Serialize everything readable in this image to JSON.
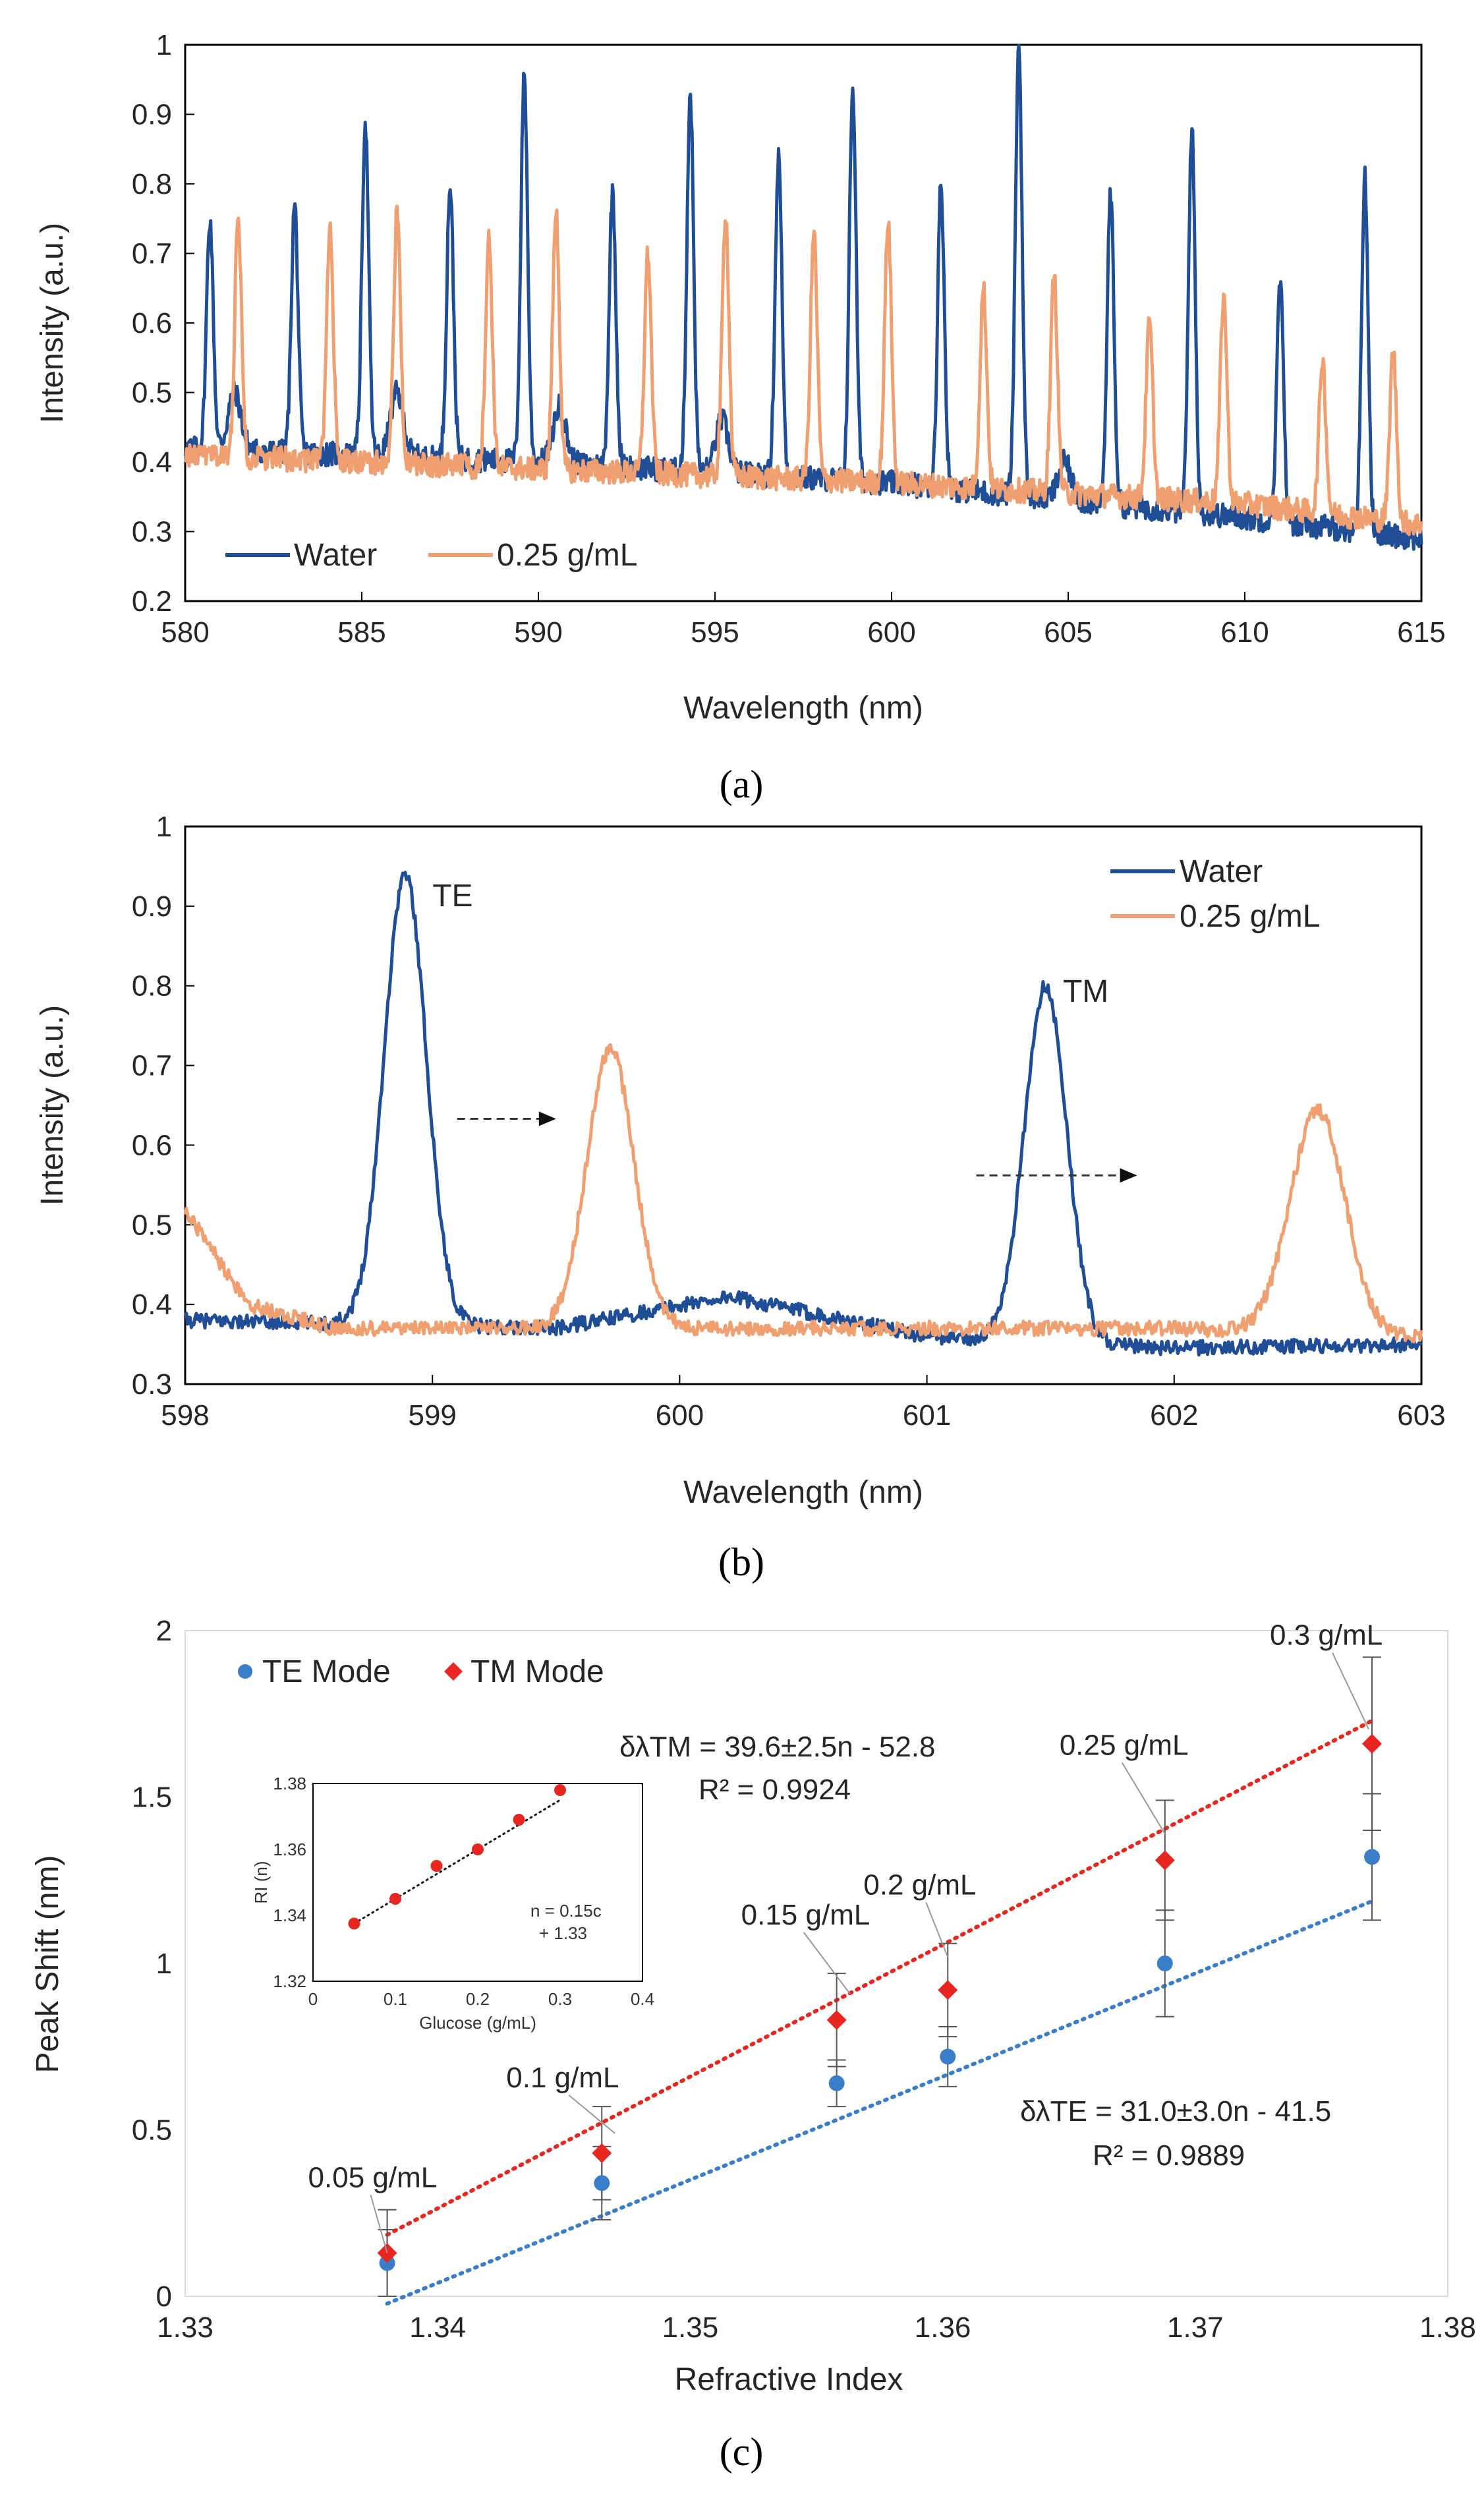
{
  "chart_data": [
    {
      "id": "a",
      "type": "line",
      "caption": "(a)",
      "xlabel": "Wavelength (nm)",
      "ylabel": "Intensity (a.u.)",
      "xlim": [
        580,
        615
      ],
      "ylim": [
        0.2,
        1.0
      ],
      "xticks": [
        "580",
        "585",
        "590",
        "595",
        "600",
        "605",
        "610",
        "615"
      ],
      "yticks": [
        "0.2",
        "0.3",
        "0.4",
        "0.5",
        "0.6",
        "0.7",
        "0.8",
        "0.9",
        "1"
      ],
      "legend": {
        "position": "bottom-left",
        "entries": [
          "Water",
          "0.25 g/mL"
        ]
      },
      "series": [
        {
          "name": "Water",
          "color": "#1f4e96",
          "baseline": {
            "x": [
              580,
              590,
              600,
              610,
              615
            ],
            "y": [
              0.42,
              0.4,
              0.37,
              0.32,
              0.29
            ]
          },
          "peaks": [
            {
              "x": 580.7,
              "y": 0.75
            },
            {
              "x": 583.1,
              "y": 0.77
            },
            {
              "x": 585.1,
              "y": 0.89
            },
            {
              "x": 587.5,
              "y": 0.8
            },
            {
              "x": 589.6,
              "y": 0.96
            },
            {
              "x": 592.1,
              "y": 0.79
            },
            {
              "x": 594.3,
              "y": 0.93
            },
            {
              "x": 596.8,
              "y": 0.84
            },
            {
              "x": 598.9,
              "y": 0.94
            },
            {
              "x": 601.4,
              "y": 0.8
            },
            {
              "x": 603.6,
              "y": 1.0
            },
            {
              "x": 606.2,
              "y": 0.79
            },
            {
              "x": 608.5,
              "y": 0.88
            },
            {
              "x": 611.0,
              "y": 0.66
            },
            {
              "x": 613.4,
              "y": 0.81
            }
          ],
          "bumps": [
            {
              "x": 581.4,
              "y": 0.5
            },
            {
              "x": 586.0,
              "y": 0.5
            },
            {
              "x": 590.6,
              "y": 0.48
            },
            {
              "x": 595.2,
              "y": 0.46
            },
            {
              "x": 604.9,
              "y": 0.4
            }
          ]
        },
        {
          "name": "0.25 g/mL",
          "color": "#f0a070",
          "baseline": {
            "x": [
              580,
              590,
              600,
              610,
              615
            ],
            "y": [
              0.41,
              0.39,
              0.37,
              0.34,
              0.31
            ]
          },
          "peaks": [
            {
              "x": 581.5,
              "y": 0.75
            },
            {
              "x": 584.1,
              "y": 0.73
            },
            {
              "x": 586.0,
              "y": 0.76
            },
            {
              "x": 588.6,
              "y": 0.72
            },
            {
              "x": 590.5,
              "y": 0.76
            },
            {
              "x": 593.1,
              "y": 0.7
            },
            {
              "x": 595.3,
              "y": 0.76
            },
            {
              "x": 597.8,
              "y": 0.73
            },
            {
              "x": 599.9,
              "y": 0.75
            },
            {
              "x": 602.6,
              "y": 0.65
            },
            {
              "x": 604.6,
              "y": 0.67
            },
            {
              "x": 607.3,
              "y": 0.6
            },
            {
              "x": 609.4,
              "y": 0.64
            },
            {
              "x": 612.2,
              "y": 0.55
            },
            {
              "x": 614.2,
              "y": 0.56
            }
          ],
          "bumps": []
        }
      ]
    },
    {
      "id": "b",
      "type": "line",
      "caption": "(b)",
      "xlabel": "Wavelength (nm)",
      "ylabel": "Intensity (a.u.)",
      "xlim": [
        598,
        603
      ],
      "ylim": [
        0.3,
        1.0
      ],
      "xticks": [
        "598",
        "599",
        "600",
        "601",
        "602",
        "603"
      ],
      "yticks": [
        "0.3",
        "0.4",
        "0.5",
        "0.6",
        "0.7",
        "0.8",
        "0.9",
        "1"
      ],
      "legend": {
        "position": "top-right",
        "entries": [
          "Water",
          "0.25 g/mL"
        ]
      },
      "annotations": [
        {
          "text": "TE",
          "x": 599.0,
          "y": 0.9
        },
        {
          "text": "TM",
          "x": 601.55,
          "y": 0.78
        }
      ],
      "arrows": [
        {
          "from": [
            599.1,
            0.633
          ],
          "to": [
            599.5,
            0.633
          ]
        },
        {
          "from": [
            601.2,
            0.562
          ],
          "to": [
            601.85,
            0.562
          ]
        }
      ],
      "series": [
        {
          "name": "Water",
          "color": "#1f4e96",
          "baseline": {
            "x": [
              598,
              599.5,
              600.2,
              601,
              602,
              603
            ],
            "y": [
              0.38,
              0.37,
              0.41,
              0.36,
              0.345,
              0.35
            ]
          },
          "peaks": [
            {
              "x": 598.89,
              "y": 0.94,
              "w": 0.085
            },
            {
              "x": 601.48,
              "y": 0.8,
              "w": 0.085
            }
          ]
        },
        {
          "name": "0.25 g/mL",
          "color": "#f0a070",
          "baseline": {
            "x": [
              598,
              598.25,
              598.6,
              600,
              601,
              602,
              603
            ],
            "y": [
              0.52,
              0.4,
              0.37,
              0.37,
              0.37,
              0.37,
              0.36
            ]
          },
          "peaks": [
            {
              "x": 599.72,
              "y": 0.72,
              "w": 0.095
            },
            {
              "x": 602.58,
              "y": 0.645,
              "w": 0.11
            }
          ]
        }
      ]
    },
    {
      "id": "c",
      "type": "scatter",
      "caption": "(c)",
      "xlabel": "Refractive Index",
      "ylabel": "Peak Shift (nm)",
      "xlim": [
        1.33,
        1.38
      ],
      "ylim": [
        0,
        2
      ],
      "xticks": [
        "1.33",
        "1.34",
        "1.35",
        "1.36",
        "1.37",
        "1.38"
      ],
      "yticks": [
        "0",
        "0.5",
        "1",
        "1.5",
        "2"
      ],
      "legend": {
        "position": "top-left",
        "entries": [
          "TE Mode",
          "TM Mode"
        ]
      },
      "series": [
        {
          "name": "TE Mode",
          "color": "#3a7dc9",
          "marker": "circle",
          "x": [
            1.338,
            1.3465,
            1.3558,
            1.3602,
            1.3688,
            1.377
          ],
          "y": [
            0.1,
            0.34,
            0.64,
            0.72,
            1.0,
            1.32
          ],
          "err": [
            0.1,
            0.11,
            0.07,
            0.09,
            0.16,
            0.19
          ],
          "fit": {
            "slope": 31.0,
            "intercept": -41.5,
            "x": [
              1.338,
              1.377
            ],
            "label": "δλTE = 31.0±3.0n - 41.5",
            "r2": "R² = 0.9889"
          }
        },
        {
          "name": "TM Mode",
          "color": "#e8251e",
          "marker": "diamond",
          "x": [
            1.338,
            1.3465,
            1.3558,
            1.3602,
            1.3688,
            1.377
          ],
          "y": [
            0.13,
            0.43,
            0.83,
            0.92,
            1.31,
            1.66
          ],
          "err": [
            0.13,
            0.14,
            0.14,
            0.14,
            0.18,
            0.26
          ],
          "fit": {
            "slope": 39.6,
            "intercept": -52.8,
            "x": [
              1.338,
              1.377
            ],
            "label": "δλTM = 39.6±2.5n - 52.8",
            "r2": "R² = 0.9924"
          }
        }
      ],
      "point_labels": [
        "0.05 g/mL",
        "0.1 g/mL",
        "0.15 g/mL",
        "0.2 g/mL",
        "0.25 g/mL",
        "0.3 g/mL"
      ],
      "inset": {
        "type": "scatter",
        "xlabel": "Glucose (g/mL)",
        "ylabel": "RI (n)",
        "xlim": [
          0,
          0.4
        ],
        "ylim": [
          1.32,
          1.38
        ],
        "xticks": [
          "0",
          "0.1",
          "0.2",
          "0.3",
          "0.4"
        ],
        "yticks": [
          "1.32",
          "1.34",
          "1.36",
          "1.38"
        ],
        "x": [
          0.05,
          0.1,
          0.15,
          0.2,
          0.25,
          0.3
        ],
        "y": [
          1.3375,
          1.345,
          1.355,
          1.36,
          1.369,
          1.378
        ],
        "color": "#e8251e",
        "fit_label_1": "n = 0.15c",
        "fit_label_2": "+ 1.33"
      }
    }
  ]
}
